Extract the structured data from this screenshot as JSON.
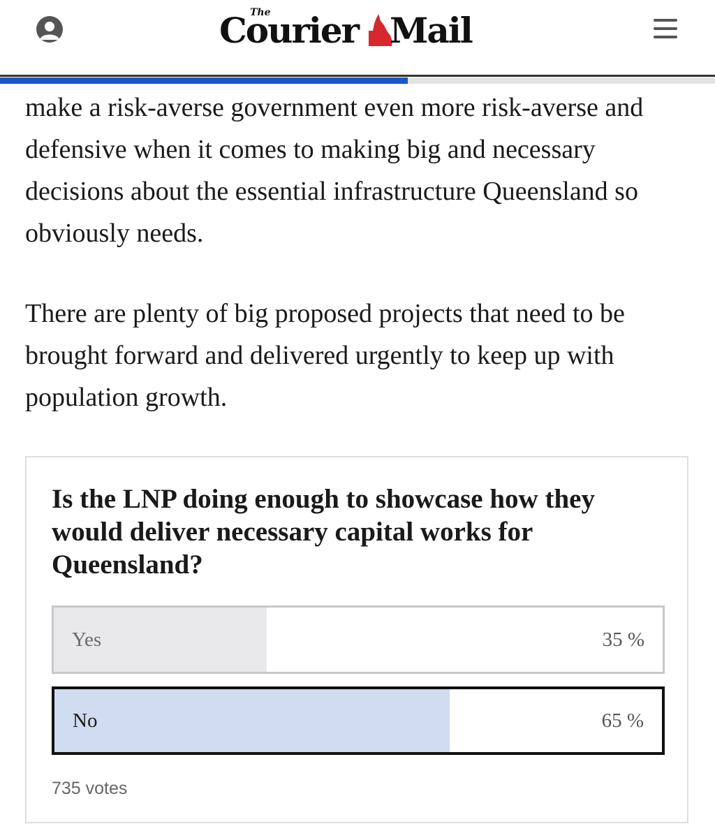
{
  "header": {
    "logo_the": "The",
    "logo_left": "Courier",
    "logo_right": "Mail",
    "account_icon": "user-account-icon",
    "menu_icon": "hamburger-menu-icon",
    "reading_progress": 0.57,
    "colors": {
      "progress": "#1a56c4",
      "logo_accent": "#d6282d"
    }
  },
  "article": {
    "paragraphs": [
      "make a risk-averse government even more risk-averse and defensive when it comes to making big and necessary decisions about the essential infrastructure Queensland so obviously needs.",
      "There are plenty of big proposed projects that need to be brought forward and delivered urgently to keep up with population growth."
    ]
  },
  "poll": {
    "question": "Is the LNP doing enough to showcase how they would deliver necessary capital works for Queensland?",
    "options": [
      {
        "label": "Yes",
        "percent_text": "35 %",
        "percent": 35,
        "selected": false
      },
      {
        "label": "No",
        "percent_text": "65 %",
        "percent": 65,
        "selected": true
      }
    ],
    "votes": "735 votes"
  }
}
